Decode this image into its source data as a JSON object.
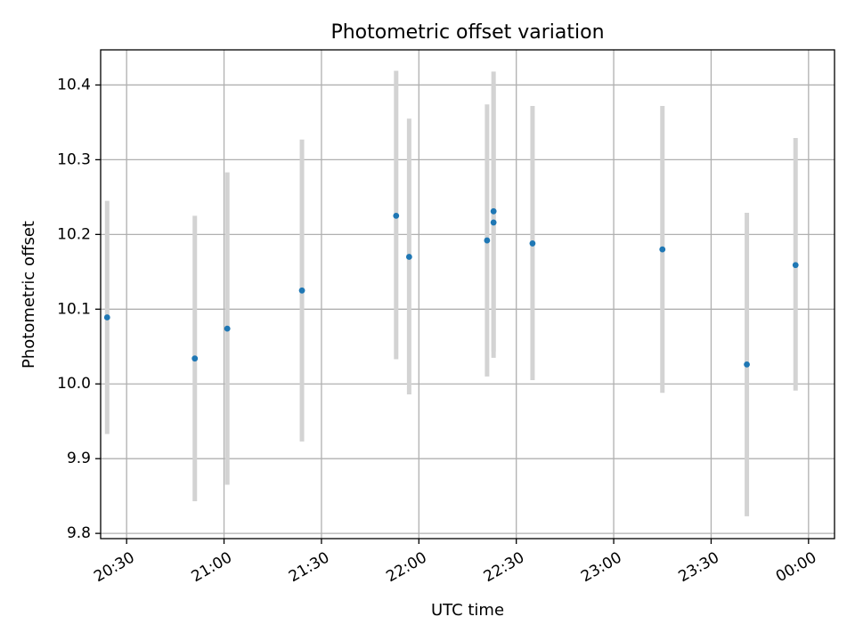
{
  "chart_data": {
    "type": "scatter",
    "title": "Photometric offset variation",
    "xlabel": "UTC time",
    "ylabel": "Photometric offset",
    "grid": true,
    "xlim": [
      "20:22",
      "00:08"
    ],
    "ylim": [
      9.793,
      10.447
    ],
    "x_ticks": [
      "20:30",
      "21:00",
      "21:30",
      "22:00",
      "22:30",
      "23:00",
      "23:30",
      "00:00"
    ],
    "y_ticks": [
      "9.8",
      "9.9",
      "10.0",
      "10.1",
      "10.2",
      "10.3",
      "10.4"
    ],
    "colors": {
      "point": "#1f77b4",
      "errorbar": "#d3d3d3",
      "grid": "#b0b0b0"
    },
    "points": [
      {
        "x": "20:24",
        "y": 10.089,
        "ylow": 9.933,
        "yhigh": 10.245
      },
      {
        "x": "20:51",
        "y": 10.034,
        "ylow": 9.843,
        "yhigh": 10.225
      },
      {
        "x": "21:01",
        "y": 10.074,
        "ylow": 9.865,
        "yhigh": 10.283
      },
      {
        "x": "21:24",
        "y": 10.125,
        "ylow": 9.923,
        "yhigh": 10.327
      },
      {
        "x": "21:53",
        "y": 10.225,
        "ylow": 10.033,
        "yhigh": 10.419
      },
      {
        "x": "21:57",
        "y": 10.17,
        "ylow": 9.986,
        "yhigh": 10.355
      },
      {
        "x": "22:21",
        "y": 10.192,
        "ylow": 10.01,
        "yhigh": 10.374
      },
      {
        "x": "22:23",
        "y": 10.216,
        "ylow": 10.035,
        "yhigh": 10.398
      },
      {
        "x": "22:23",
        "y": 10.231,
        "ylow": 10.043,
        "yhigh": 10.418
      },
      {
        "x": "22:35",
        "y": 10.188,
        "ylow": 10.005,
        "yhigh": 10.372
      },
      {
        "x": "23:15",
        "y": 10.18,
        "ylow": 9.988,
        "yhigh": 10.372
      },
      {
        "x": "23:41",
        "y": 10.026,
        "ylow": 9.823,
        "yhigh": 10.229
      },
      {
        "x": "23:56",
        "y": 10.159,
        "ylow": 9.991,
        "yhigh": 10.329
      }
    ]
  }
}
